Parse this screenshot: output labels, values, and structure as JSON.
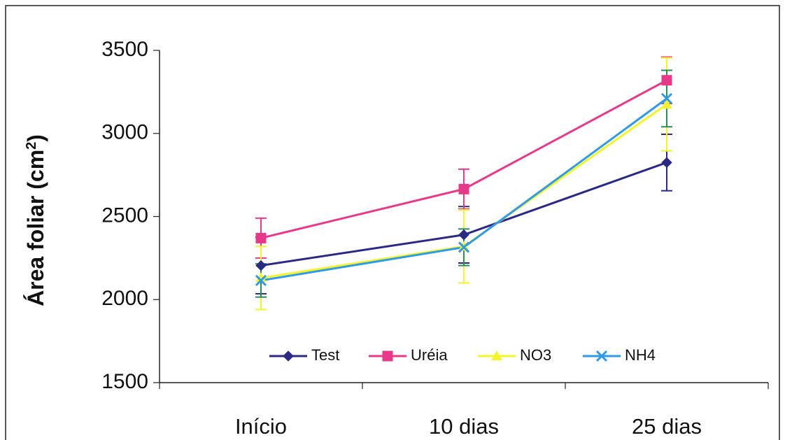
{
  "chart_data": {
    "type": "line",
    "title": "",
    "xlabel": "",
    "ylabel": "Área foliar (cm",
    "ylabel_superscript": "2",
    "ylabel_suffix": ")",
    "categories": [
      "Início",
      "10 dias",
      "25 dias"
    ],
    "ylim": [
      1500,
      3500
    ],
    "yticks": [
      1500,
      2000,
      2500,
      3000,
      3500
    ],
    "ytick_labels": [
      "1500",
      "2000",
      "2500",
      "3000",
      "3500"
    ],
    "grid": false,
    "legend": "bottom-center",
    "series": [
      {
        "name": "Test",
        "color": "#2a2a86",
        "marker": "diamond",
        "values": [
          2205,
          2390,
          2825
        ],
        "errors": [
          170,
          170,
          170
        ]
      },
      {
        "name": "Uréia",
        "color": "#e8388a",
        "marker": "square",
        "values": [
          2370,
          2665,
          3320
        ],
        "errors": [
          120,
          120,
          140
        ]
      },
      {
        "name": "NO3",
        "color": "#f4f42a",
        "marker": "triangle",
        "values": [
          2130,
          2320,
          3175
        ],
        "errors": [
          190,
          220,
          280
        ]
      },
      {
        "name": "NH4",
        "color": "#2f9be8",
        "marker": "x",
        "values": [
          2115,
          2315,
          3210
        ],
        "errors": [
          100,
          110,
          170
        ]
      }
    ]
  }
}
